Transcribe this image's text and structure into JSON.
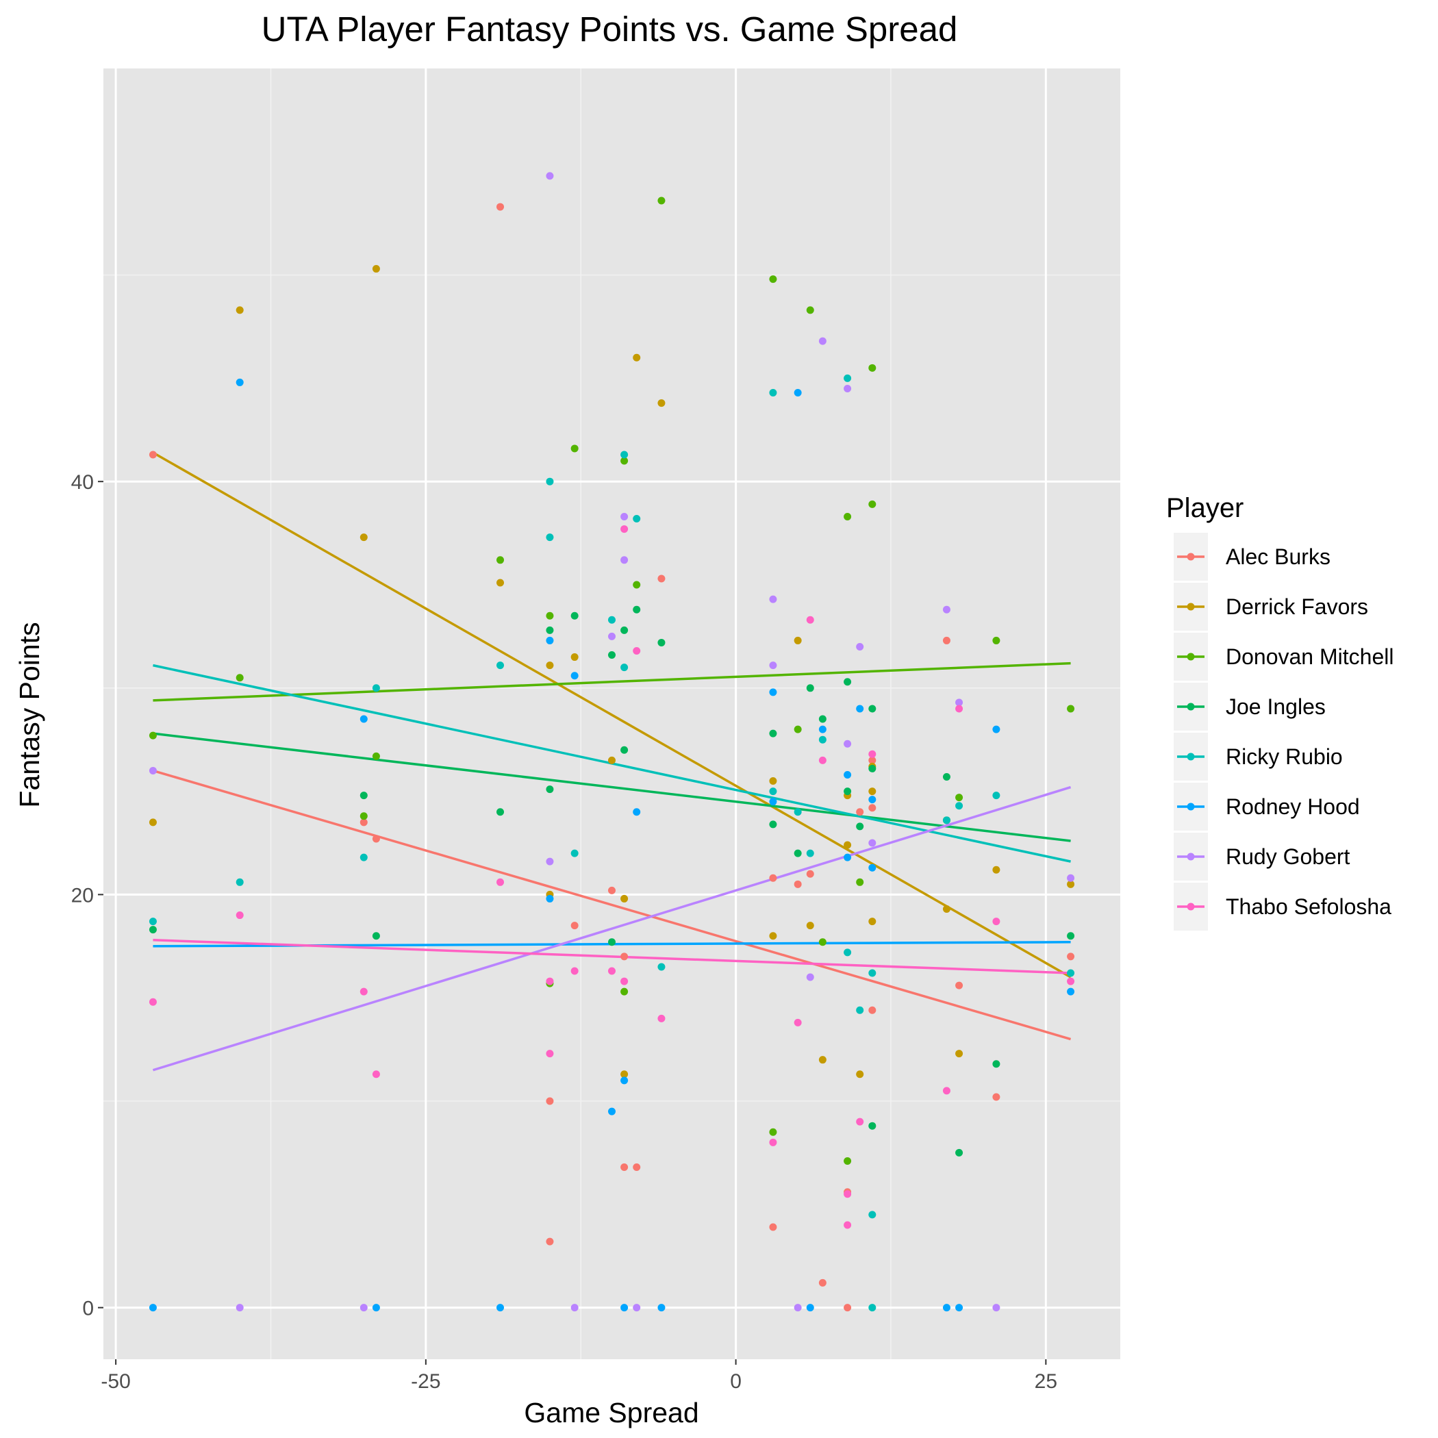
{
  "chart_data": {
    "type": "scatter",
    "title": "UTA Player Fantasy Points vs. Game Spread",
    "xlabel": "Game Spread",
    "ylabel": "Fantasy Points",
    "xlim": [
      -51,
      31
    ],
    "ylim": [
      -2.5,
      60
    ],
    "x_ticks": [
      -50,
      -25,
      0,
      25
    ],
    "x_tick_labels": [
      "-50",
      "-25",
      "0",
      "25"
    ],
    "y_ticks": [
      0,
      20,
      40
    ],
    "y_tick_labels": [
      "0",
      "20",
      "40"
    ],
    "grid": true,
    "legend": {
      "title": "Player",
      "position": "right"
    },
    "series": [
      {
        "name": "Alec Burks",
        "color": "#F8766D",
        "trend": [
          [
            -47,
            26
          ],
          [
            27,
            13
          ]
        ],
        "points": [
          [
            -47,
            41.3
          ],
          [
            -30,
            23.5
          ],
          [
            -29,
            22.7
          ],
          [
            -19,
            53.3
          ],
          [
            -15,
            3.2
          ],
          [
            -15,
            10
          ],
          [
            -13,
            18.5
          ],
          [
            -10,
            20.2
          ],
          [
            -9,
            17
          ],
          [
            -9,
            6.8
          ],
          [
            -8,
            6.8
          ],
          [
            -6,
            35.3
          ],
          [
            3,
            20.8
          ],
          [
            3,
            3.9
          ],
          [
            5,
            20.5
          ],
          [
            6,
            21
          ],
          [
            7,
            1.2
          ],
          [
            9,
            5.6
          ],
          [
            9,
            0
          ],
          [
            10,
            24
          ],
          [
            11,
            26.5
          ],
          [
            11,
            24.2
          ],
          [
            11,
            14.4
          ],
          [
            17,
            32.3
          ],
          [
            18,
            15.6
          ],
          [
            21,
            10.2
          ],
          [
            27,
            17
          ]
        ]
      },
      {
        "name": "Derrick Favors",
        "color": "#C49A00",
        "trend": [
          [
            -47,
            41.4
          ],
          [
            27,
            16
          ]
        ],
        "points": [
          [
            -47,
            23.5
          ],
          [
            -40,
            48.3
          ],
          [
            -30,
            37.3
          ],
          [
            -29,
            50.3
          ],
          [
            -19,
            35.1
          ],
          [
            -15,
            31.1
          ],
          [
            -15,
            20
          ],
          [
            -13,
            31.5
          ],
          [
            -10,
            26.5
          ],
          [
            -9,
            19.8
          ],
          [
            -9,
            11.3
          ],
          [
            -8,
            46
          ],
          [
            -6,
            43.8
          ],
          [
            3,
            25.5
          ],
          [
            3,
            18
          ],
          [
            5,
            32.3
          ],
          [
            6,
            18.5
          ],
          [
            7,
            12
          ],
          [
            9,
            24.8
          ],
          [
            9,
            22.4
          ],
          [
            10,
            11.3
          ],
          [
            11,
            26.2
          ],
          [
            11,
            25
          ],
          [
            11,
            18.7
          ],
          [
            17,
            19.3
          ],
          [
            18,
            12.3
          ],
          [
            21,
            21.2
          ],
          [
            27,
            20.5
          ]
        ]
      },
      {
        "name": "Donovan Mitchell",
        "color": "#53B400",
        "trend": [
          [
            -47,
            29.4
          ],
          [
            27,
            31.2
          ]
        ],
        "points": [
          [
            -47,
            27.7
          ],
          [
            -40,
            30.5
          ],
          [
            -30,
            23.8
          ],
          [
            -29,
            26.7
          ],
          [
            -19,
            36.2
          ],
          [
            -15,
            33.5
          ],
          [
            -15,
            15.7
          ],
          [
            -13,
            41.6
          ],
          [
            -9,
            41
          ],
          [
            -9,
            15.3
          ],
          [
            -8,
            35
          ],
          [
            -6,
            53.6
          ],
          [
            3,
            49.8
          ],
          [
            3,
            8.5
          ],
          [
            5,
            28
          ],
          [
            6,
            48.3
          ],
          [
            7,
            17.7
          ],
          [
            9,
            38.3
          ],
          [
            9,
            7.1
          ],
          [
            10,
            20.6
          ],
          [
            11,
            38.9
          ],
          [
            11,
            45.5
          ],
          [
            17,
            23.6
          ],
          [
            18,
            24.7
          ],
          [
            21,
            32.3
          ],
          [
            27,
            29
          ]
        ]
      },
      {
        "name": "Joe Ingles",
        "color": "#00B65A",
        "trend": [
          [
            -47,
            27.8
          ],
          [
            27,
            22.6
          ]
        ],
        "points": [
          [
            -47,
            18.3
          ],
          [
            -30,
            24.8
          ],
          [
            -29,
            18
          ],
          [
            -19,
            24
          ],
          [
            -15,
            32.8
          ],
          [
            -15,
            25.1
          ],
          [
            -13,
            33.5
          ],
          [
            -10,
            31.6
          ],
          [
            -10,
            17.7
          ],
          [
            -9,
            32.8
          ],
          [
            -9,
            27
          ],
          [
            -8,
            33.8
          ],
          [
            -6,
            32.2
          ],
          [
            3,
            27.8
          ],
          [
            3,
            23.4
          ],
          [
            5,
            22
          ],
          [
            6,
            30
          ],
          [
            7,
            28.5
          ],
          [
            9,
            30.3
          ],
          [
            9,
            25
          ],
          [
            10,
            23.3
          ],
          [
            11,
            29
          ],
          [
            11,
            26.1
          ],
          [
            11,
            8.8
          ],
          [
            17,
            25.7
          ],
          [
            18,
            7.5
          ],
          [
            21,
            11.8
          ],
          [
            27,
            18
          ]
        ]
      },
      {
        "name": "Ricky Rubio",
        "color": "#00C0B8",
        "trend": [
          [
            -47,
            31.1
          ],
          [
            27,
            21.6
          ]
        ],
        "points": [
          [
            -47,
            18.7
          ],
          [
            -40,
            20.6
          ],
          [
            -30,
            21.8
          ],
          [
            -29,
            30
          ],
          [
            -19,
            31.1
          ],
          [
            -15,
            40
          ],
          [
            -15,
            37.3
          ],
          [
            -13,
            22
          ],
          [
            -10,
            33.3
          ],
          [
            -9,
            41.3
          ],
          [
            -9,
            31
          ],
          [
            -8,
            38.2
          ],
          [
            -6,
            16.5
          ],
          [
            3,
            44.3
          ],
          [
            3,
            25
          ],
          [
            5,
            24
          ],
          [
            6,
            22
          ],
          [
            7,
            27.5
          ],
          [
            9,
            45
          ],
          [
            9,
            17.2
          ],
          [
            10,
            14.4
          ],
          [
            11,
            4.5
          ],
          [
            11,
            0
          ],
          [
            11,
            16.2
          ],
          [
            17,
            23.6
          ],
          [
            18,
            24.3
          ],
          [
            21,
            24.8
          ],
          [
            27,
            16.2
          ]
        ]
      },
      {
        "name": "Rodney Hood",
        "color": "#00A5FF",
        "trend": [
          [
            -47,
            17.5
          ],
          [
            27,
            17.7
          ]
        ],
        "points": [
          [
            -47,
            0
          ],
          [
            -40,
            44.8
          ],
          [
            -30,
            28.5
          ],
          [
            -29,
            0
          ],
          [
            -19,
            0
          ],
          [
            -15,
            32.3
          ],
          [
            -15,
            19.8
          ],
          [
            -13,
            30.6
          ],
          [
            -10,
            9.5
          ],
          [
            -9,
            11
          ],
          [
            -9,
            0
          ],
          [
            -8,
            24
          ],
          [
            -6,
            0
          ],
          [
            3,
            29.8
          ],
          [
            3,
            24.5
          ],
          [
            5,
            44.3
          ],
          [
            6,
            0
          ],
          [
            7,
            28
          ],
          [
            9,
            25.8
          ],
          [
            9,
            21.8
          ],
          [
            10,
            29
          ],
          [
            11,
            24.6
          ],
          [
            11,
            21.3
          ],
          [
            17,
            0
          ],
          [
            18,
            0
          ],
          [
            21,
            28
          ],
          [
            27,
            15.3
          ]
        ]
      },
      {
        "name": "Rudy Gobert",
        "color": "#B983FF",
        "trend": [
          [
            -47,
            11.5
          ],
          [
            27,
            25.2
          ]
        ],
        "points": [
          [
            -47,
            26
          ],
          [
            -40,
            0
          ],
          [
            -30,
            0
          ],
          [
            -15,
            54.8
          ],
          [
            -15,
            21.6
          ],
          [
            -13,
            0
          ],
          [
            -10,
            32.5
          ],
          [
            -9,
            38.3
          ],
          [
            -9,
            36.2
          ],
          [
            -8,
            0
          ],
          [
            3,
            34.3
          ],
          [
            3,
            31.1
          ],
          [
            5,
            0
          ],
          [
            6,
            16
          ],
          [
            7,
            46.8
          ],
          [
            9,
            44.5
          ],
          [
            9,
            27.3
          ],
          [
            10,
            32
          ],
          [
            11,
            22.5
          ],
          [
            17,
            33.8
          ],
          [
            18,
            29.3
          ],
          [
            21,
            0
          ],
          [
            27,
            20.8
          ]
        ]
      },
      {
        "name": "Thabo Sefolosha",
        "color": "#FF61C3",
        "trend": [
          [
            -47,
            17.8
          ],
          [
            27,
            16.2
          ]
        ],
        "points": [
          [
            -47,
            14.8
          ],
          [
            -40,
            19
          ],
          [
            -30,
            15.3
          ],
          [
            -29,
            11.3
          ],
          [
            -19,
            20.6
          ],
          [
            -15,
            15.8
          ],
          [
            -15,
            12.3
          ],
          [
            -13,
            16.3
          ],
          [
            -10,
            16.3
          ],
          [
            -9,
            37.7
          ],
          [
            -9,
            15.8
          ],
          [
            -8,
            31.8
          ],
          [
            -6,
            14
          ],
          [
            3,
            8
          ],
          [
            5,
            13.8
          ],
          [
            6,
            33.3
          ],
          [
            7,
            26.5
          ],
          [
            9,
            5.5
          ],
          [
            9,
            4
          ],
          [
            10,
            9
          ],
          [
            11,
            26.8
          ],
          [
            17,
            10.5
          ],
          [
            18,
            29
          ],
          [
            21,
            18.7
          ],
          [
            27,
            15.8
          ]
        ]
      }
    ]
  }
}
